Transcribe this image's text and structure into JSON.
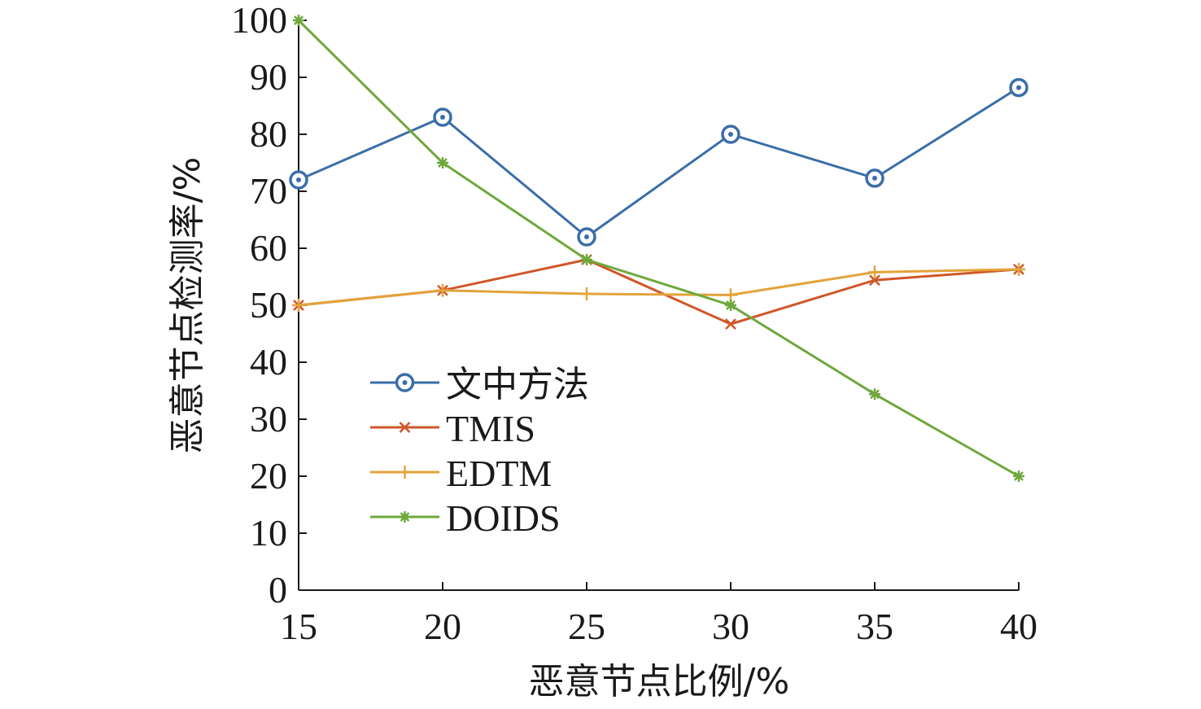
{
  "chart_data": {
    "type": "line",
    "xlabel": "恶意节点比例/%",
    "ylabel": "恶意节点检测率/%",
    "x": [
      15,
      20,
      25,
      30,
      35,
      40
    ],
    "xlim": [
      15,
      40
    ],
    "ylim": [
      0,
      100
    ],
    "xticks": [
      15,
      20,
      25,
      30,
      35,
      40
    ],
    "yticks": [
      0,
      10,
      20,
      30,
      40,
      50,
      60,
      70,
      80,
      90,
      100
    ],
    "grid": false,
    "legend_position": "center-left",
    "series": [
      {
        "name": "文中方法",
        "values": [
          72,
          83,
          62,
          80,
          72.3,
          88.2
        ],
        "color": "#3a6ea8",
        "marker": "circle-dot"
      },
      {
        "name": "TMIS",
        "values": [
          50,
          52.6,
          58,
          46.7,
          54.4,
          56.3
        ],
        "color": "#d0562a",
        "marker": "x"
      },
      {
        "name": "EDTM",
        "values": [
          50,
          52.6,
          52,
          51.8,
          55.8,
          56.3
        ],
        "color": "#e3a33a",
        "marker": "plus"
      },
      {
        "name": "DOIDS",
        "values": [
          100,
          75,
          58,
          50,
          34.4,
          20
        ],
        "color": "#6fa83d",
        "marker": "asterisk"
      }
    ]
  }
}
